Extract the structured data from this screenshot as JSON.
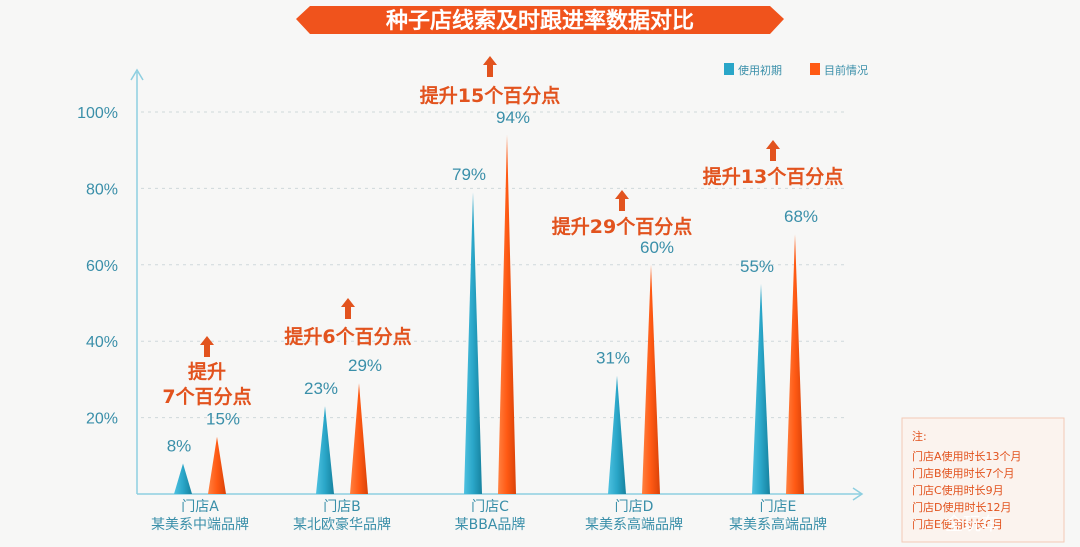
{
  "chart_data": {
    "type": "bar",
    "title": "种子店线索及时跟进率数据对比",
    "categories": [
      {
        "line1": "门店A",
        "line2": "某美系中端品牌"
      },
      {
        "line1": "门店B",
        "line2": "某北欧豪华品牌"
      },
      {
        "line1": "门店C",
        "line2": "某BBA品牌"
      },
      {
        "line1": "门店D",
        "line2": "某美系高端品牌"
      },
      {
        "line1": "门店E",
        "line2": "某美系高端品牌"
      }
    ],
    "series": [
      {
        "name": "使用初期",
        "color": "#2aa6c8",
        "values": [
          8,
          23,
          79,
          31,
          55
        ],
        "labels": [
          "8%",
          "23%",
          "79%",
          "31%",
          "55%"
        ]
      },
      {
        "name": "目前情况",
        "color": "#ff5a14",
        "values": [
          15,
          29,
          94,
          60,
          68
        ],
        "labels": [
          "15%",
          "29%",
          "94%",
          "60%",
          "68%"
        ]
      }
    ],
    "ylim": [
      0,
      100
    ],
    "yticks": [
      20,
      40,
      60,
      80,
      100
    ],
    "ytick_labels": [
      "20%",
      "40%",
      "60%",
      "80%",
      "100%"
    ],
    "grid": true,
    "legend_position": "top-right",
    "annotations": [
      {
        "lines": [
          "提升",
          "7个百分点"
        ]
      },
      {
        "lines": [
          "提升6个百分点"
        ]
      },
      {
        "lines": [
          "提升15个百分点"
        ]
      },
      {
        "lines": [
          "提升29个百分点"
        ]
      },
      {
        "lines": [
          "提升13个百分点"
        ]
      }
    ],
    "note": {
      "heading": "注:",
      "lines": [
        "门店A使用时长13个月",
        "门店B使用时长7个月",
        "门店C使用时长9月",
        "门店D使用时长12月",
        "门店E使用时长6月"
      ]
    }
  },
  "watermark": "全玩车",
  "colors": {
    "title_bg": "#f0531c",
    "axis": "#8ecfe0",
    "grid": "#cfd8db",
    "text": "#3a8fa9",
    "accent": "#e2531e"
  }
}
